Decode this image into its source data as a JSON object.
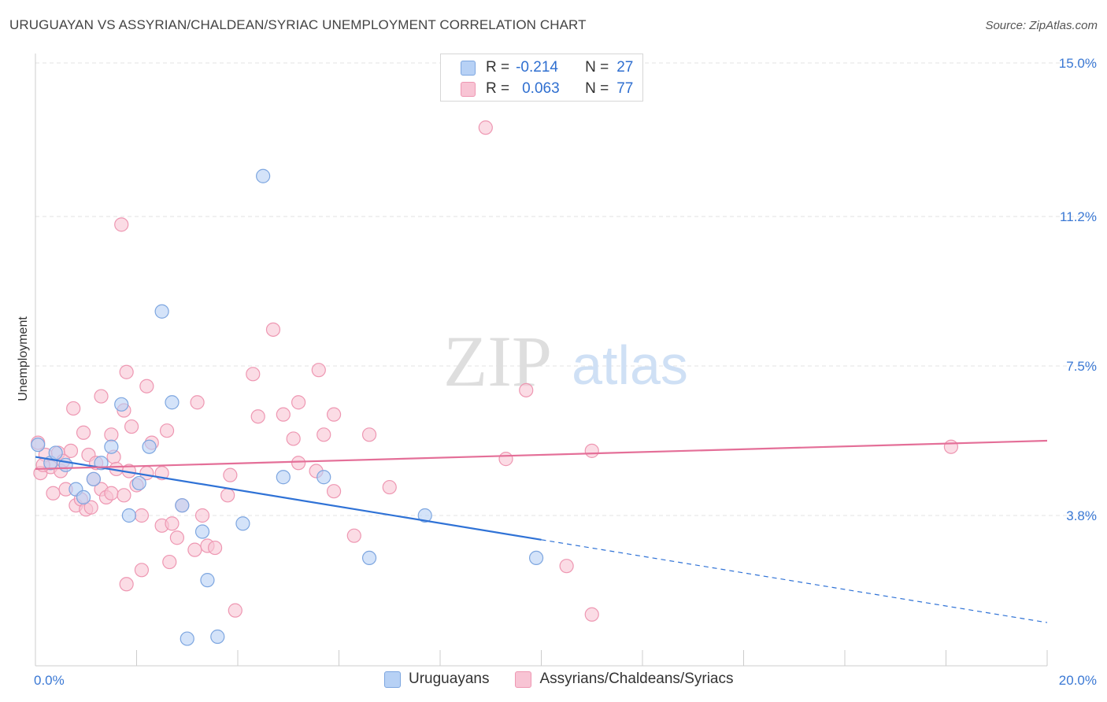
{
  "title": "URUGUAYAN VS ASSYRIAN/CHALDEAN/SYRIAC UNEMPLOYMENT CORRELATION CHART",
  "source": "Source: ZipAtlas.com",
  "watermark": {
    "zip": "ZIP",
    "atlas": "atlas"
  },
  "legend_top": {
    "rows": [
      {
        "r_label": "R =",
        "r_value": "-0.214",
        "n_label": "N =",
        "n_value": "27"
      },
      {
        "r_label": "R =",
        "r_value": "0.063",
        "n_label": "N =",
        "n_value": "77"
      }
    ]
  },
  "legend_bottom": {
    "series1": "Uruguayans",
    "series2": "Assyrians/Chaldeans/Syriacs"
  },
  "colors": {
    "blue_fill": "#b7d1f5",
    "blue_stroke": "#7da6e0",
    "blue_line": "#2f72d6",
    "pink_fill": "#f8c4d4",
    "pink_stroke": "#ee97b2",
    "pink_line": "#e46f98",
    "tick_text": "#3a78d4",
    "grid": "#e3e3e3"
  },
  "chart_data": {
    "type": "scatter",
    "title": "URUGUAYAN VS ASSYRIAN/CHALDEAN/SYRIAC UNEMPLOYMENT CORRELATION CHART",
    "xlabel": "",
    "ylabel": "Unemployment",
    "xlim": [
      0,
      20
    ],
    "ylim": [
      0,
      15.4
    ],
    "x_ticks_labeled": [
      {
        "value": 0,
        "label": "0.0%"
      },
      {
        "value": 20,
        "label": "20.0%"
      }
    ],
    "x_minor_ticks": [
      2,
      4,
      6,
      8,
      10,
      12,
      14,
      16,
      18,
      20
    ],
    "y_ticks": [
      {
        "value": 3.8,
        "label": "3.8%"
      },
      {
        "value": 7.5,
        "label": "7.5%"
      },
      {
        "value": 11.2,
        "label": "11.2%"
      },
      {
        "value": 15.0,
        "label": "15.0%"
      }
    ],
    "grid": true,
    "series": [
      {
        "name": "Uruguayans",
        "color": "blue",
        "r": -0.214,
        "n": 27,
        "trend": {
          "solid_from_x": 0,
          "solid_to_x": 10,
          "y_at_0": 5.25,
          "y_at_20": 1.15
        },
        "points": [
          [
            0.05,
            5.55
          ],
          [
            0.3,
            5.1
          ],
          [
            0.4,
            5.35
          ],
          [
            0.6,
            5.05
          ],
          [
            0.8,
            4.45
          ],
          [
            0.95,
            4.25
          ],
          [
            1.15,
            4.7
          ],
          [
            1.3,
            5.1
          ],
          [
            1.5,
            5.5
          ],
          [
            1.7,
            6.55
          ],
          [
            1.85,
            3.8
          ],
          [
            2.05,
            4.6
          ],
          [
            2.25,
            5.5
          ],
          [
            2.5,
            8.85
          ],
          [
            2.7,
            6.6
          ],
          [
            2.9,
            4.05
          ],
          [
            3.0,
            0.75
          ],
          [
            3.3,
            3.4
          ],
          [
            3.4,
            2.2
          ],
          [
            3.6,
            0.8
          ],
          [
            4.1,
            3.6
          ],
          [
            4.5,
            12.2
          ],
          [
            4.9,
            4.75
          ],
          [
            5.7,
            4.75
          ],
          [
            6.6,
            2.75
          ],
          [
            7.7,
            3.8
          ],
          [
            9.9,
            2.75
          ]
        ]
      },
      {
        "name": "Assyrians/Chaldeans/Syriacs",
        "color": "pink",
        "r": 0.063,
        "n": 77,
        "trend": {
          "solid_from_x": 0,
          "solid_to_x": 20,
          "y_at_0": 4.95,
          "y_at_20": 5.65
        },
        "points": [
          [
            0.05,
            5.6
          ],
          [
            0.1,
            4.85
          ],
          [
            0.2,
            5.3
          ],
          [
            0.3,
            5.0
          ],
          [
            0.35,
            4.35
          ],
          [
            0.45,
            5.35
          ],
          [
            0.5,
            4.9
          ],
          [
            0.55,
            5.15
          ],
          [
            0.6,
            4.45
          ],
          [
            0.7,
            5.4
          ],
          [
            0.75,
            6.45
          ],
          [
            0.8,
            4.05
          ],
          [
            0.9,
            4.2
          ],
          [
            0.95,
            5.85
          ],
          [
            1.0,
            3.95
          ],
          [
            1.05,
            5.3
          ],
          [
            1.1,
            4.0
          ],
          [
            1.15,
            4.7
          ],
          [
            1.2,
            5.1
          ],
          [
            1.3,
            4.45
          ],
          [
            1.3,
            6.75
          ],
          [
            1.4,
            4.25
          ],
          [
            1.5,
            4.35
          ],
          [
            1.5,
            5.8
          ],
          [
            1.55,
            5.25
          ],
          [
            1.6,
            4.95
          ],
          [
            1.7,
            11.0
          ],
          [
            1.75,
            4.3
          ],
          [
            1.75,
            6.4
          ],
          [
            1.8,
            2.1
          ],
          [
            1.8,
            7.35
          ],
          [
            1.9,
            6.0
          ],
          [
            2.0,
            4.55
          ],
          [
            2.1,
            2.45
          ],
          [
            2.1,
            3.8
          ],
          [
            2.2,
            4.85
          ],
          [
            2.2,
            7.0
          ],
          [
            2.3,
            5.6
          ],
          [
            2.5,
            3.55
          ],
          [
            2.5,
            4.85
          ],
          [
            2.6,
            5.9
          ],
          [
            2.65,
            2.65
          ],
          [
            2.7,
            3.6
          ],
          [
            2.8,
            3.25
          ],
          [
            2.9,
            4.05
          ],
          [
            3.15,
            2.95
          ],
          [
            3.2,
            6.6
          ],
          [
            3.3,
            3.8
          ],
          [
            3.4,
            3.05
          ],
          [
            3.55,
            3.0
          ],
          [
            3.8,
            4.3
          ],
          [
            3.85,
            4.8
          ],
          [
            3.95,
            1.45
          ],
          [
            4.3,
            7.3
          ],
          [
            4.4,
            6.25
          ],
          [
            4.7,
            8.4
          ],
          [
            4.9,
            6.3
          ],
          [
            5.1,
            5.7
          ],
          [
            5.2,
            5.1
          ],
          [
            5.2,
            6.6
          ],
          [
            5.55,
            4.9
          ],
          [
            5.6,
            7.4
          ],
          [
            5.7,
            5.8
          ],
          [
            5.9,
            4.4
          ],
          [
            5.9,
            6.3
          ],
          [
            6.3,
            3.3
          ],
          [
            6.6,
            5.8
          ],
          [
            7.0,
            4.5
          ],
          [
            8.9,
            13.4
          ],
          [
            9.3,
            5.2
          ],
          [
            9.7,
            6.9
          ],
          [
            10.5,
            2.55
          ],
          [
            11.0,
            1.35
          ],
          [
            11.0,
            5.4
          ],
          [
            18.1,
            5.5
          ],
          [
            0.15,
            5.05
          ],
          [
            1.85,
            4.9
          ]
        ]
      }
    ]
  }
}
